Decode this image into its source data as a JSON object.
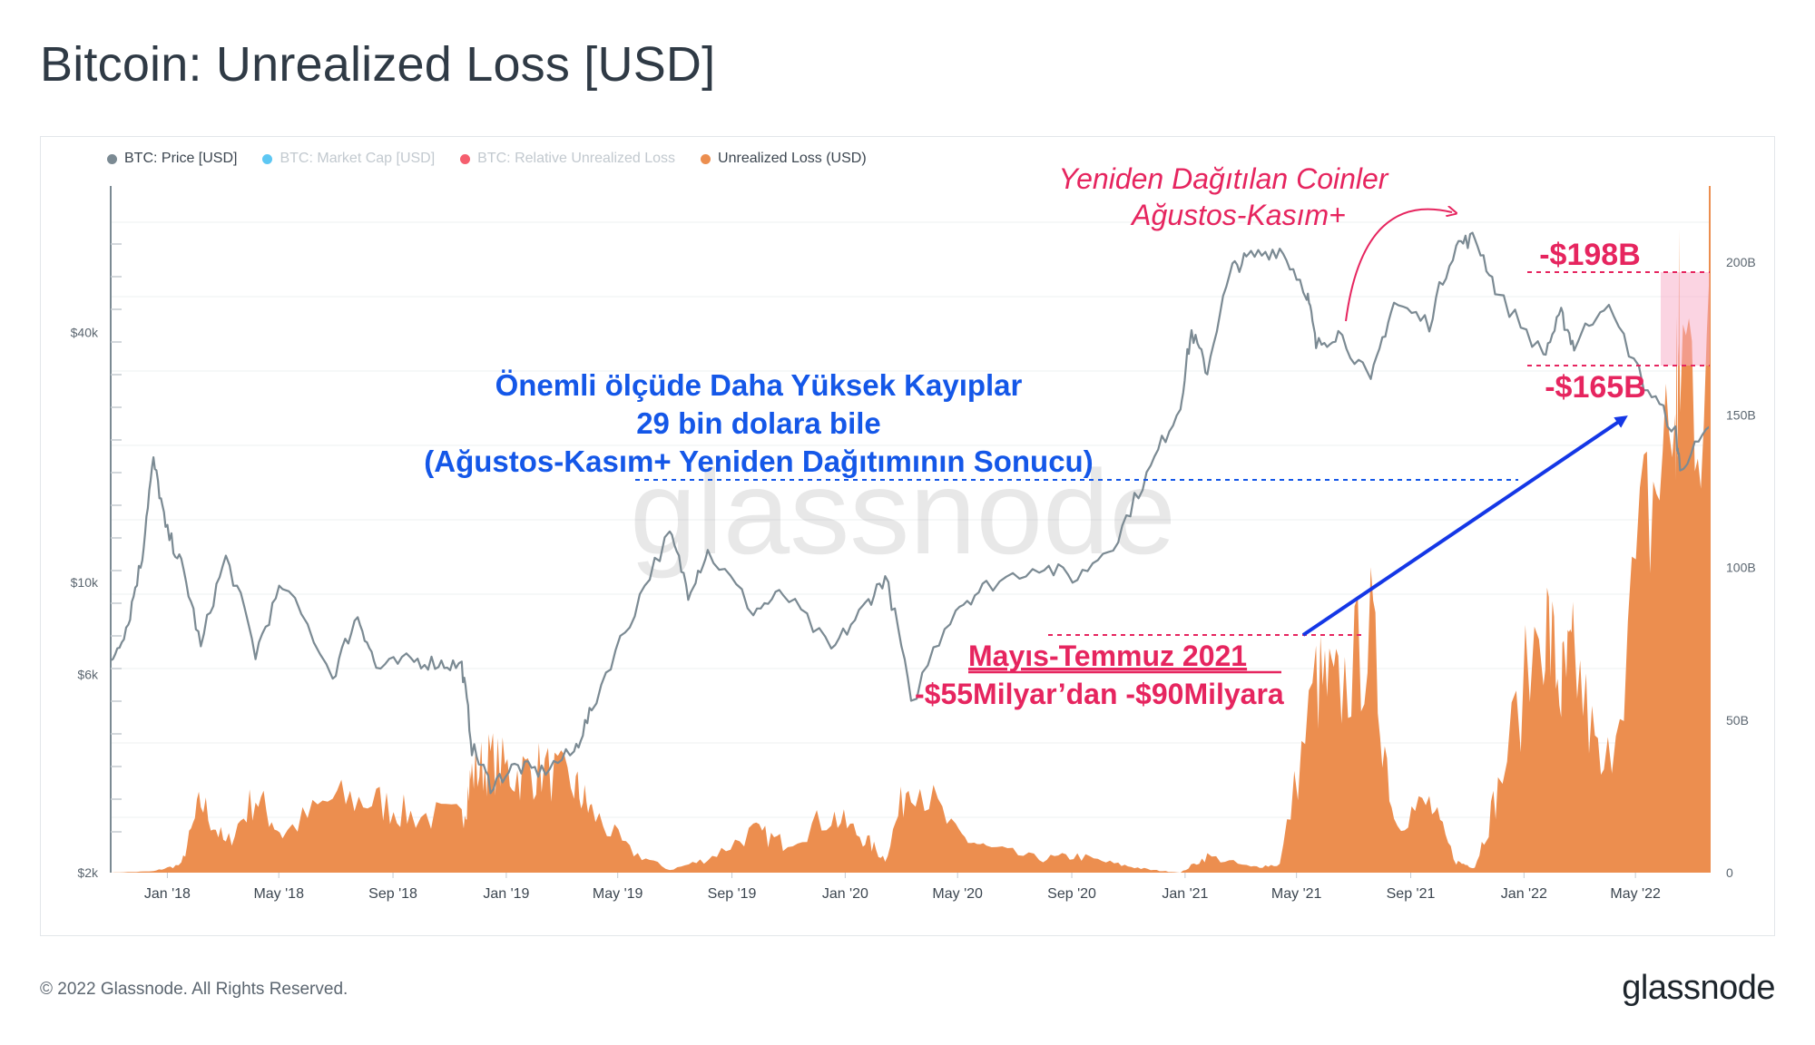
{
  "title": "Bitcoin: Unrealized Loss [USD]",
  "legend": [
    {
      "label": "BTC: Price [USD]",
      "color": "#7b8a93",
      "active": true
    },
    {
      "label": "BTC: Market Cap [USD]",
      "color": "#35b9f0",
      "active": false
    },
    {
      "label": "BTC: Relative Unrealized Loss",
      "color": "#f2364a",
      "active": false
    },
    {
      "label": "Unrealized Loss (USD)",
      "color": "#ec8e4f",
      "active": true
    }
  ],
  "watermark": "glassnode",
  "footer": {
    "copyright": "© 2022 Glassnode. All Rights Reserved.",
    "logo": "glassnode"
  },
  "chart_data": {
    "type": "line",
    "title": "Bitcoin: Unrealized Loss [USD]",
    "x_axis": {
      "type": "date",
      "ticks": [
        "Jan '18",
        "May '18",
        "Sep '18",
        "Jan '19",
        "May '19",
        "Sep '19",
        "Jan '20",
        "May '20",
        "Sep '20",
        "Jan '21",
        "May '21",
        "Sep '21",
        "Jan '22",
        "May '22"
      ],
      "range": [
        "2017-11-01",
        "2022-07-20"
      ]
    },
    "y_axis_left": {
      "scale": "log",
      "ticks": [
        "$2k",
        "$6k",
        "$10k",
        "$40k"
      ],
      "range": [
        2000,
        90000
      ]
    },
    "y_axis_right": {
      "scale": "linear",
      "ticks": [
        "0",
        "50B",
        "100B",
        "150B",
        "200B"
      ],
      "range": [
        0,
        225
      ]
    },
    "series": [
      {
        "name": "BTC: Price [USD]",
        "color": "#7b8a93",
        "axis": "left",
        "points": [
          [
            "2017-11-01",
            6400
          ],
          [
            "2017-11-20",
            8000
          ],
          [
            "2017-12-05",
            11500
          ],
          [
            "2017-12-17",
            19500
          ],
          [
            "2017-12-30",
            13500
          ],
          [
            "2018-01-16",
            11000
          ],
          [
            "2018-02-06",
            6900
          ],
          [
            "2018-03-05",
            11400
          ],
          [
            "2018-04-06",
            6700
          ],
          [
            "2018-05-05",
            9800
          ],
          [
            "2018-06-28",
            5900
          ],
          [
            "2018-07-25",
            8300
          ],
          [
            "2018-08-14",
            6200
          ],
          [
            "2018-09-20",
            6500
          ],
          [
            "2018-10-20",
            6400
          ],
          [
            "2018-11-14",
            6300
          ],
          [
            "2018-11-25",
            4000
          ],
          [
            "2018-12-15",
            3250
          ],
          [
            "2019-01-10",
            3600
          ],
          [
            "2019-02-08",
            3500
          ],
          [
            "2019-03-15",
            3900
          ],
          [
            "2019-04-03",
            4900
          ],
          [
            "2019-05-14",
            8000
          ],
          [
            "2019-06-26",
            13000
          ],
          [
            "2019-07-16",
            9500
          ],
          [
            "2019-08-06",
            11800
          ],
          [
            "2019-09-24",
            8500
          ],
          [
            "2019-10-26",
            9400
          ],
          [
            "2019-12-17",
            6800
          ],
          [
            "2020-01-20",
            8600
          ],
          [
            "2020-02-13",
            10300
          ],
          [
            "2020-03-12",
            5000
          ],
          [
            "2020-04-29",
            8700
          ],
          [
            "2020-06-01",
            9800
          ],
          [
            "2020-07-28",
            11000
          ],
          [
            "2020-09-07",
            10200
          ],
          [
            "2020-10-21",
            12800
          ],
          [
            "2020-11-25",
            18800
          ],
          [
            "2020-12-27",
            26500
          ],
          [
            "2021-01-08",
            40000
          ],
          [
            "2021-01-25",
            32000
          ],
          [
            "2021-02-21",
            57000
          ],
          [
            "2021-03-13",
            61000
          ],
          [
            "2021-04-13",
            63500
          ],
          [
            "2021-05-12",
            50000
          ],
          [
            "2021-05-22",
            37000
          ],
          [
            "2021-06-15",
            40000
          ],
          [
            "2021-07-20",
            30000
          ],
          [
            "2021-08-14",
            47000
          ],
          [
            "2021-09-21",
            42000
          ],
          [
            "2021-10-20",
            65000
          ],
          [
            "2021-11-09",
            67500
          ],
          [
            "2021-12-04",
            49000
          ],
          [
            "2022-01-22",
            35000
          ],
          [
            "2022-02-10",
            44000
          ],
          [
            "2022-02-24",
            37000
          ],
          [
            "2022-03-28",
            47000
          ],
          [
            "2022-05-10",
            30000
          ],
          [
            "2022-06-13",
            23000
          ],
          [
            "2022-06-18",
            19000
          ],
          [
            "2022-07-20",
            23000
          ]
        ]
      },
      {
        "name": "Unrealized Loss (USD)",
        "color": "#ec8e4f",
        "axis": "right",
        "unit": "B USD",
        "points": [
          [
            "2017-11-01",
            0
          ],
          [
            "2017-12-17",
            0.5
          ],
          [
            "2018-01-16",
            3
          ],
          [
            "2018-02-06",
            26
          ],
          [
            "2018-03-05",
            10
          ],
          [
            "2018-04-06",
            28
          ],
          [
            "2018-05-05",
            14
          ],
          [
            "2018-06-28",
            27
          ],
          [
            "2018-08-14",
            26
          ],
          [
            "2018-09-20",
            21
          ],
          [
            "2018-11-14",
            20
          ],
          [
            "2018-11-25",
            36
          ],
          [
            "2018-12-15",
            41
          ],
          [
            "2019-01-10",
            36
          ],
          [
            "2019-02-08",
            38
          ],
          [
            "2019-03-15",
            32
          ],
          [
            "2019-04-03",
            22
          ],
          [
            "2019-05-14",
            8
          ],
          [
            "2019-06-26",
            1
          ],
          [
            "2019-08-06",
            5
          ],
          [
            "2019-09-24",
            15
          ],
          [
            "2019-10-26",
            11
          ],
          [
            "2019-12-17",
            21
          ],
          [
            "2020-01-20",
            13
          ],
          [
            "2020-02-13",
            5
          ],
          [
            "2020-03-12",
            37
          ],
          [
            "2020-04-29",
            14
          ],
          [
            "2020-06-01",
            9
          ],
          [
            "2020-07-28",
            5
          ],
          [
            "2020-09-07",
            6
          ],
          [
            "2020-10-21",
            3
          ],
          [
            "2020-11-25",
            1
          ],
          [
            "2020-12-27",
            0
          ],
          [
            "2021-01-25",
            6
          ],
          [
            "2021-03-13",
            2
          ],
          [
            "2021-04-13",
            3
          ],
          [
            "2021-05-22",
            70
          ],
          [
            "2021-06-15",
            65
          ],
          [
            "2021-07-20",
            88
          ],
          [
            "2021-08-14",
            20
          ],
          [
            "2021-09-21",
            25
          ],
          [
            "2021-10-20",
            4
          ],
          [
            "2021-11-09",
            2
          ],
          [
            "2021-12-04",
            30
          ],
          [
            "2022-01-22",
            96
          ],
          [
            "2022-02-10",
            67
          ],
          [
            "2022-02-24",
            78
          ],
          [
            "2022-03-28",
            32
          ],
          [
            "2022-05-10",
            125
          ],
          [
            "2022-06-13",
            168
          ],
          [
            "2022-06-18",
            190
          ],
          [
            "2022-07-20",
            181
          ]
        ]
      }
    ],
    "annotations": [
      {
        "text": "Yeniden Dağıtılan Coinler",
        "color": "#e6255f",
        "style": "italic"
      },
      {
        "text": "Ağustos-Kasım+",
        "color": "#e6255f",
        "style": "italic"
      },
      {
        "text": "-$198B",
        "color": "#e6255f"
      },
      {
        "text": "-$165B",
        "color": "#e6255f"
      },
      {
        "text": "Önemli ölçüde Daha Yüksek Kayıplar",
        "color": "#1457e8"
      },
      {
        "text": "29 bin dolara bile",
        "color": "#1457e8"
      },
      {
        "text": "(Ağustos-Kasım+ Yeniden Dağıtımının Sonucu)",
        "color": "#1457e8"
      },
      {
        "text": "Mayıs-Temmuz 2021",
        "color": "#e6255f"
      },
      {
        "text": "-$55Milyar’dan -$90Milyara",
        "color": "#e6255f"
      }
    ],
    "grid": true,
    "legend_position": "top-left"
  }
}
